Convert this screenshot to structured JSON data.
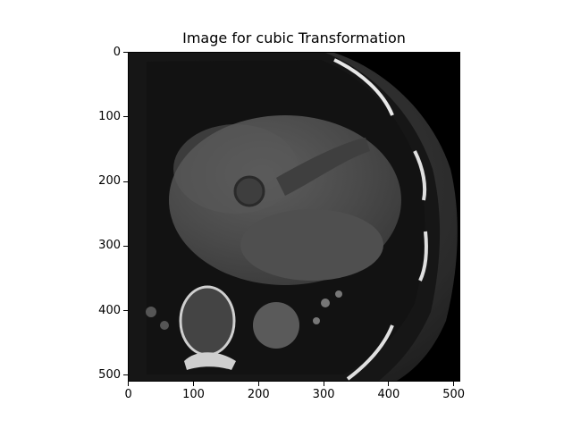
{
  "figure": {
    "title": "Image for cubic Transformation",
    "image_description_icon": "ct-scan-image",
    "x_axis": {
      "ticks": [
        "0",
        "100",
        "200",
        "300",
        "400",
        "500"
      ],
      "range": [
        0,
        511
      ]
    },
    "y_axis": {
      "ticks": [
        "0",
        "100",
        "200",
        "300",
        "400",
        "500"
      ],
      "range": [
        0,
        511
      ],
      "inverted": true
    },
    "colormap": "gray"
  }
}
